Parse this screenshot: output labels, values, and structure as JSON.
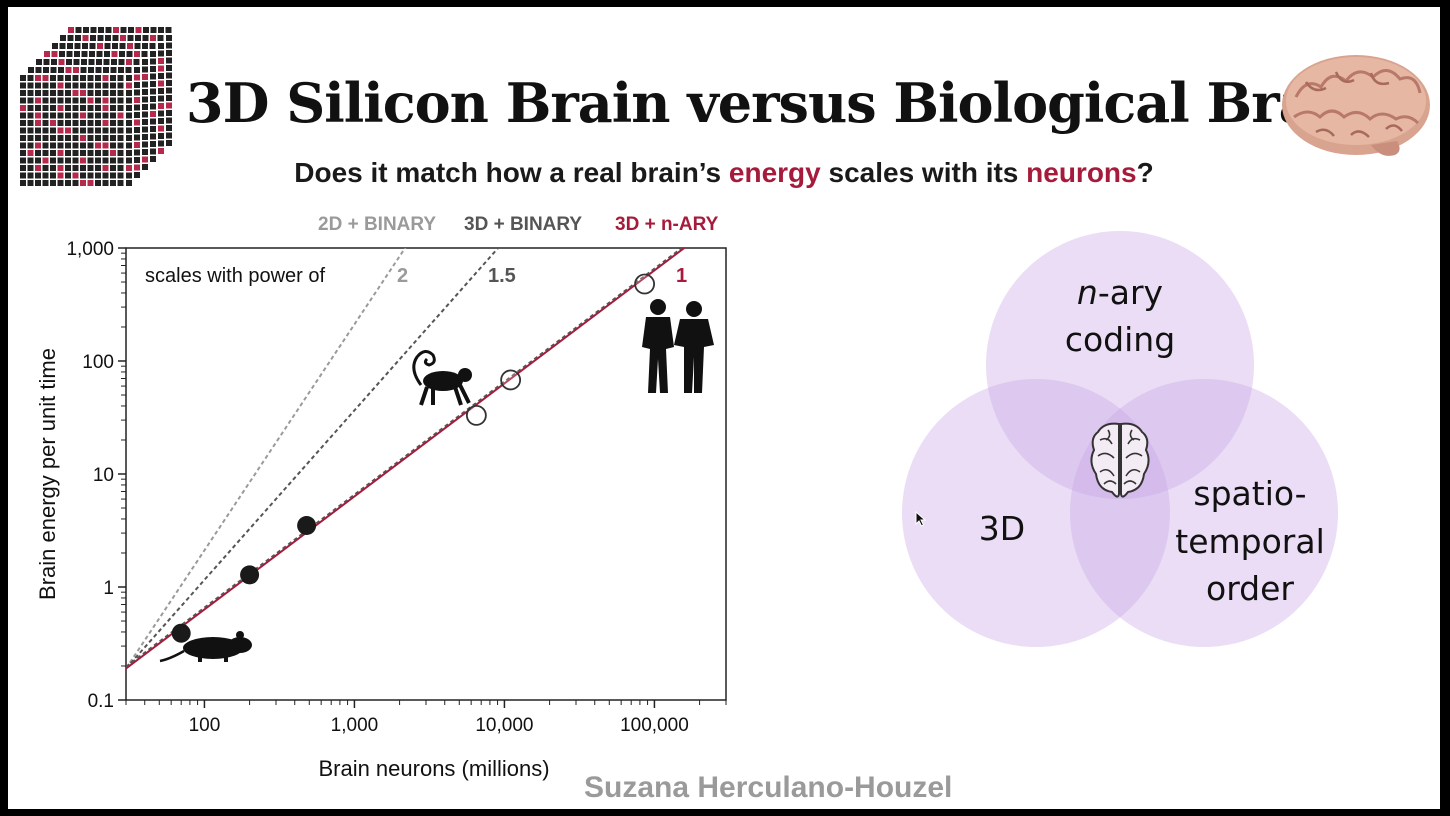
{
  "slide": {
    "title": "3D Silicon Brain versus Biological Brain",
    "subtitle_parts": [
      "Does it match how a real brain’s ",
      "energy",
      " scales with its ",
      "neurons",
      "?"
    ],
    "credit": "Suzana Herculano-Houzel",
    "accent_color": "#a61b3b"
  },
  "legend": [
    {
      "label": "2D + BINARY",
      "color": "#9a9a9a"
    },
    {
      "label": "3D + BINARY",
      "color": "#555555"
    },
    {
      "label": "3D + n-ARY",
      "color": "#a61b3b"
    }
  ],
  "venn": {
    "circles": [
      {
        "label_lines": [
          "n-ary",
          "coding"
        ]
      },
      {
        "label_lines": [
          "3D"
        ]
      },
      {
        "label_lines": [
          "spatio-",
          "temporal",
          "order"
        ]
      }
    ],
    "fill_color": "#c9a6e6",
    "center_icon": "brain-icon"
  },
  "chart_data": {
    "type": "scatter",
    "xlabel": "Brain neurons (millions)",
    "ylabel": "Brain energy per unit time",
    "x_scale": "log",
    "y_scale": "log",
    "xlim": [
      30,
      300000
    ],
    "ylim": [
      0.1,
      1000
    ],
    "x_ticks": [
      100,
      1000,
      10000,
      100000
    ],
    "x_tick_labels": [
      "100",
      "1,000",
      "10,000",
      "100,000"
    ],
    "y_ticks": [
      0.1,
      1,
      10,
      100,
      1000
    ],
    "y_tick_labels": [
      "0.1",
      "1",
      "10",
      "100",
      "1,000"
    ],
    "annotation": "scales with power of",
    "lines": [
      {
        "power": 2,
        "label": "2",
        "color": "#9a9a9a",
        "style": "dotted"
      },
      {
        "power": 1.5,
        "label": "1.5",
        "color": "#555555",
        "style": "dotted"
      },
      {
        "power": 1,
        "label": "1",
        "color": "#a61b3b",
        "style": "solid"
      }
    ],
    "line_origin": {
      "x": 30,
      "y": 0.19
    },
    "series": [
      {
        "marker": "filled",
        "points": [
          [
            70,
            0.39
          ],
          [
            200,
            1.28
          ],
          [
            480,
            3.5
          ]
        ]
      },
      {
        "marker": "open",
        "points": [
          [
            6500,
            33
          ],
          [
            11000,
            68
          ],
          [
            86000,
            480
          ]
        ]
      }
    ],
    "icons": [
      "rat-icon",
      "monkey-icon",
      "humans-icon"
    ],
    "grid": false
  }
}
